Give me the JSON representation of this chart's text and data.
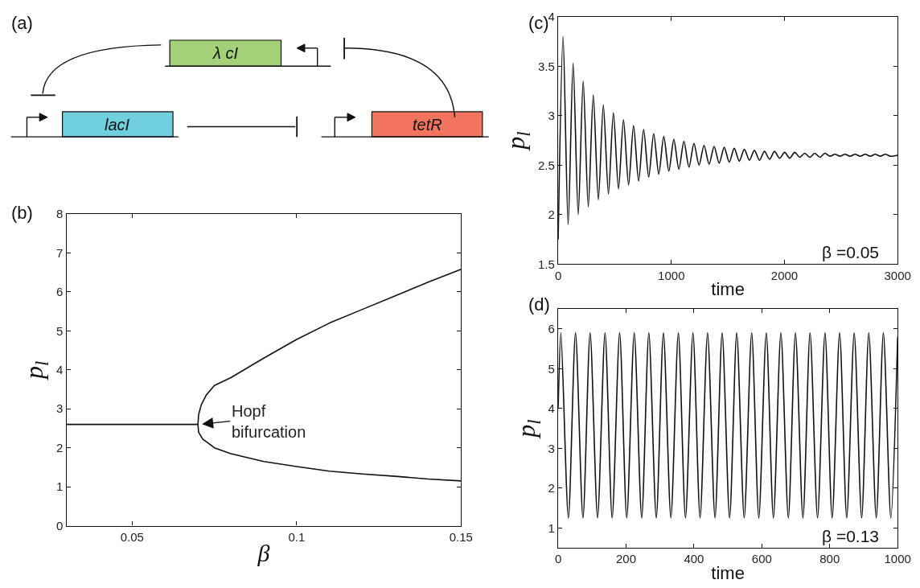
{
  "chart_data": [
    {
      "type": "other",
      "title": "(a)",
      "annotations": [
        "λ cI",
        "lacI",
        "tetR"
      ],
      "colors": [
        "#a3d078",
        "#6fcfde",
        "#f2735e"
      ]
    },
    {
      "type": "line",
      "title": "(b)",
      "xlabel": "β",
      "ylabel": "p$_{l}$",
      "xlim": [
        0.03,
        0.15
      ],
      "xticks": [
        0.05,
        0.1,
        0.15
      ],
      "ylim": [
        0,
        8
      ],
      "yticks": [
        0,
        1,
        2,
        3,
        4,
        5,
        6,
        7,
        8
      ],
      "marker": "none",
      "line_style": "solid",
      "annotations": [
        {
          "text": "Hopf\nbifurcation",
          "x": 0.0705,
          "y": 2.6
        }
      ],
      "series": [
        {
          "color": "#111111",
          "x": [
            0.03,
            0.07,
            0.0702,
            0.071,
            0.0725,
            0.075,
            0.08,
            0.09,
            0.1,
            0.11,
            0.12,
            0.13,
            0.14,
            0.15
          ],
          "values": [
            2.6,
            2.6,
            2.85,
            3.1,
            3.35,
            3.6,
            3.8,
            4.3,
            4.78,
            5.2,
            5.55,
            5.9,
            6.25,
            6.58
          ]
        },
        {
          "color": "#111111",
          "x": [
            0.07,
            0.0702,
            0.0715,
            0.075,
            0.08,
            0.09,
            0.1,
            0.11,
            0.12,
            0.13,
            0.14,
            0.15
          ],
          "values": [
            2.6,
            2.4,
            2.22,
            2.0,
            1.85,
            1.65,
            1.52,
            1.4,
            1.33,
            1.27,
            1.2,
            1.15
          ]
        }
      ]
    },
    {
      "type": "line",
      "title": "(c)",
      "xlabel": "time",
      "ylabel": "p$_{l}$",
      "xlim": [
        0,
        3000
      ],
      "xticks": [
        0,
        1000,
        2000,
        3000
      ],
      "ylim": [
        1.5,
        4
      ],
      "yticks": [
        1.5,
        2,
        2.5,
        3,
        3.5,
        4
      ],
      "marker": "none",
      "line_style": "solid",
      "annotations": [
        "β =0.05"
      ],
      "series": [
        {
          "color": "#111111",
          "x": [
            0,
            43,
            88,
            132,
            177,
            221,
            266,
            310,
            355,
            399,
            444,
            488,
            533,
            577,
            622,
            666,
            711,
            755,
            800,
            844,
            889,
            933,
            978,
            1022,
            1067,
            1111,
            1156,
            1200,
            1245,
            1289,
            1334,
            1378,
            1423,
            1467,
            1512,
            1556,
            1601,
            1645,
            1690,
            1734,
            1779,
            1823,
            1868,
            1912,
            1957,
            2001,
            2046,
            2090,
            2135,
            2179,
            2224,
            2268,
            2313,
            2357,
            2402,
            2446,
            2491,
            2535,
            2580,
            2624,
            2669,
            2713,
            2758,
            2802,
            2847,
            2891,
            2936,
            3000
          ],
          "values": [
            1.75,
            3.8,
            1.9,
            3.53,
            2.0,
            3.35,
            2.08,
            3.21,
            2.15,
            3.11,
            2.21,
            3.03,
            2.26,
            2.96,
            2.3,
            2.9,
            2.34,
            2.86,
            2.38,
            2.82,
            2.41,
            2.79,
            2.44,
            2.76,
            2.46,
            2.74,
            2.48,
            2.72,
            2.5,
            2.7,
            2.51,
            2.69,
            2.52,
            2.68,
            2.53,
            2.67,
            2.54,
            2.66,
            2.55,
            2.65,
            2.55,
            2.64,
            2.56,
            2.64,
            2.57,
            2.63,
            2.57,
            2.63,
            2.58,
            2.62,
            2.58,
            2.62,
            2.58,
            2.62,
            2.59,
            2.61,
            2.59,
            2.61,
            2.59,
            2.61,
            2.59,
            2.61,
            2.59,
            2.61,
            2.59,
            2.61,
            2.59,
            2.6
          ]
        }
      ]
    },
    {
      "type": "line",
      "title": "(d)",
      "xlabel": "time",
      "ylabel": "p$_{l}$",
      "xlim": [
        0,
        1000
      ],
      "xticks": [
        0,
        200,
        400,
        600,
        800,
        1000
      ],
      "ylim": [
        0.5,
        6.5
      ],
      "yticks": [
        1,
        2,
        3,
        4,
        5,
        6
      ],
      "marker": "none",
      "line_style": "solid",
      "annotations": [
        "β =0.13"
      ],
      "series": [
        {
          "color": "#111111",
          "x": [
            0,
            8,
            30,
            51,
            73,
            94,
            116,
            138,
            159,
            181,
            202,
            224,
            246,
            267,
            289,
            310,
            332,
            354,
            375,
            397,
            418,
            440,
            462,
            483,
            505,
            526,
            548,
            570,
            591,
            613,
            634,
            656,
            678,
            699,
            721,
            742,
            764,
            786,
            807,
            829,
            850,
            872,
            894,
            915,
            937,
            958,
            980,
            1000
          ],
          "values": [
            4.0,
            5.9,
            1.25,
            5.9,
            1.25,
            5.9,
            1.25,
            5.9,
            1.25,
            5.9,
            1.25,
            5.9,
            1.25,
            5.9,
            1.25,
            5.9,
            1.25,
            5.9,
            1.25,
            5.9,
            1.25,
            5.9,
            1.25,
            5.9,
            1.25,
            5.9,
            1.25,
            5.9,
            1.25,
            5.9,
            1.25,
            5.9,
            1.25,
            5.9,
            1.25,
            5.9,
            1.25,
            5.9,
            1.25,
            5.9,
            1.25,
            5.9,
            1.25,
            5.9,
            1.25,
            5.9,
            1.25,
            5.8
          ]
        }
      ]
    }
  ]
}
